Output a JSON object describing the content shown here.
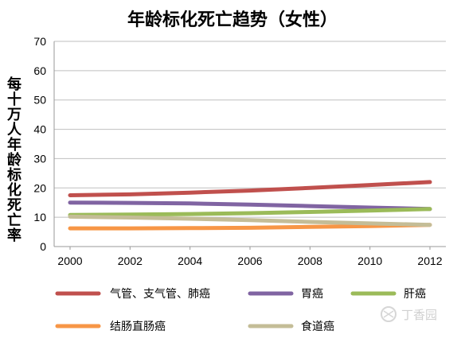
{
  "chart_data": {
    "type": "line",
    "title": "年龄标化死亡趋势（女性）",
    "xlabel": "",
    "ylabel": "每十万人年龄标化死亡率",
    "x": [
      2000,
      2002,
      2004,
      2006,
      2008,
      2010,
      2012
    ],
    "xticks": [
      "2000",
      "2002",
      "2004",
      "2006",
      "2008",
      "2010",
      "2012"
    ],
    "ylim": [
      0,
      70
    ],
    "yticks": [
      "0",
      "10",
      "20",
      "30",
      "40",
      "50",
      "60",
      "70"
    ],
    "grid": true,
    "legend_position": "bottom",
    "series": [
      {
        "name": "气管、支气管、肺癌",
        "color": "#c0504d",
        "values": [
          17.5,
          17.8,
          18.4,
          19.1,
          20.0,
          21.0,
          22.0
        ]
      },
      {
        "name": "胃癌",
        "color": "#8064a2",
        "values": [
          15.0,
          14.9,
          14.7,
          14.3,
          13.8,
          13.3,
          12.8
        ]
      },
      {
        "name": "肝癌",
        "color": "#9bbb59",
        "values": [
          10.8,
          10.9,
          11.1,
          11.4,
          11.8,
          12.3,
          12.8
        ]
      },
      {
        "name": "结肠直肠癌",
        "color": "#f79646",
        "values": [
          6.2,
          6.2,
          6.3,
          6.4,
          6.7,
          7.0,
          7.4
        ]
      },
      {
        "name": "食道癌",
        "color": "#c4bd97",
        "values": [
          10.2,
          9.9,
          9.5,
          9.0,
          8.4,
          7.9,
          7.4
        ]
      }
    ]
  },
  "watermark": {
    "text": "丁香园"
  }
}
